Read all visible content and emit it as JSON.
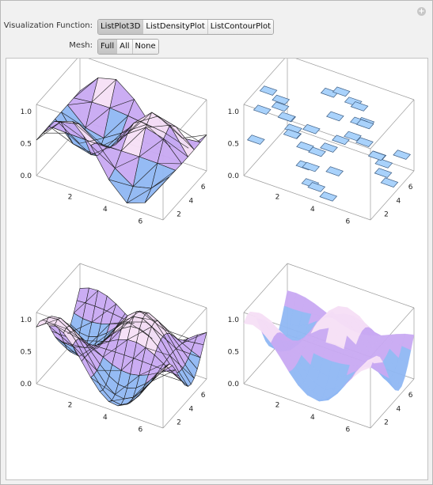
{
  "controls": {
    "visualization": {
      "label": "Visualization Function:",
      "options": [
        "ListPlot3D",
        "ListDensityPlot",
        "ListContourPlot"
      ],
      "selected": 0
    },
    "mesh": {
      "label": "Mesh:",
      "options": [
        "Full",
        "All",
        "None"
      ],
      "selected": 0
    }
  },
  "plots": [
    {
      "z_ticks": [
        "1.0",
        "0.5",
        "0.0"
      ],
      "x_ticks": [
        "2",
        "4",
        "6"
      ],
      "y_ticks": [
        "6",
        "4",
        "2"
      ],
      "style": "triangular-mesh"
    },
    {
      "z_ticks": [
        "1.0",
        "0.5",
        "0.0"
      ],
      "x_ticks": [
        "2",
        "4",
        "6"
      ],
      "y_ticks": [
        "6",
        "4",
        "2"
      ],
      "style": "flat-tiles"
    },
    {
      "z_ticks": [
        "1.0",
        "0.5",
        "0.0"
      ],
      "x_ticks": [
        "2",
        "4",
        "6"
      ],
      "y_ticks": [
        "6",
        "4",
        "2"
      ],
      "style": "interpolated-mesh"
    },
    {
      "z_ticks": [
        "1.0",
        "0.5",
        "0.0"
      ],
      "x_ticks": [
        "2",
        "4",
        "6"
      ],
      "y_ticks": [
        "6",
        "4",
        "2"
      ],
      "style": "smooth-surface"
    }
  ],
  "colors": {
    "surface_light": "#f6dff5",
    "surface_mid": "#c8a9f2",
    "surface_blue": "#8fb7f3",
    "tile_fill": "#a9d2fb",
    "tile_stroke": "#3f5f85"
  }
}
